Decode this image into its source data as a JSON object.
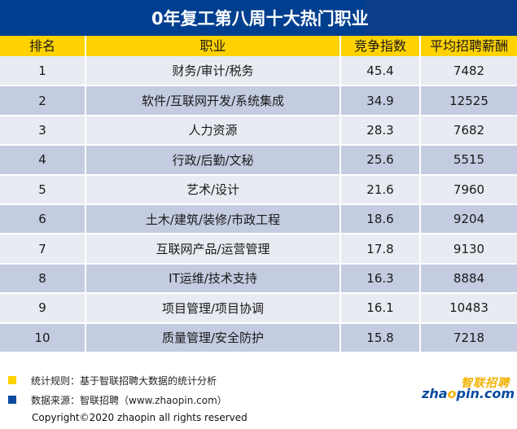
{
  "banner": {
    "title": "0年复工第八周十大热门职业"
  },
  "table": {
    "headers": [
      "排名",
      "职业",
      "竞争指数",
      "平均招聘薪酬"
    ],
    "rows": [
      {
        "rank": "1",
        "job": "财务/审计/税务",
        "index": "45.4",
        "salary": "7482"
      },
      {
        "rank": "2",
        "job": "软件/互联网开发/系统集成",
        "index": "34.9",
        "salary": "12525"
      },
      {
        "rank": "3",
        "job": "人力资源",
        "index": "28.3",
        "salary": "7682"
      },
      {
        "rank": "4",
        "job": "行政/后勤/文秘",
        "index": "25.6",
        "salary": "5515"
      },
      {
        "rank": "5",
        "job": "艺术/设计",
        "index": "21.6",
        "salary": "7960"
      },
      {
        "rank": "6",
        "job": "土木/建筑/装修/市政工程",
        "index": "18.6",
        "salary": "9204"
      },
      {
        "rank": "7",
        "job": "互联网产品/运营管理",
        "index": "17.8",
        "salary": "9130"
      },
      {
        "rank": "8",
        "job": "IT运维/技术支持",
        "index": "16.3",
        "salary": "8884"
      },
      {
        "rank": "9",
        "job": "项目管理/项目协调",
        "index": "16.1",
        "salary": "10483"
      },
      {
        "rank": "10",
        "job": "质量管理/安全防护",
        "index": "15.8",
        "salary": "7218"
      }
    ]
  },
  "footer": {
    "rule_text": "统计规则：基于智联招聘大数据的统计分析",
    "source_text": "数据来源：智联招聘（www.zhaopin.com）",
    "copyright": "Copyright©2020 zhaopin all rights reserved",
    "rule_color": "#ffd200",
    "source_color": "#0a4aa0"
  },
  "logo": {
    "cn": "智联招聘",
    "en_pre": "zha",
    "en_o": "o",
    "en_post": "pin.com"
  }
}
